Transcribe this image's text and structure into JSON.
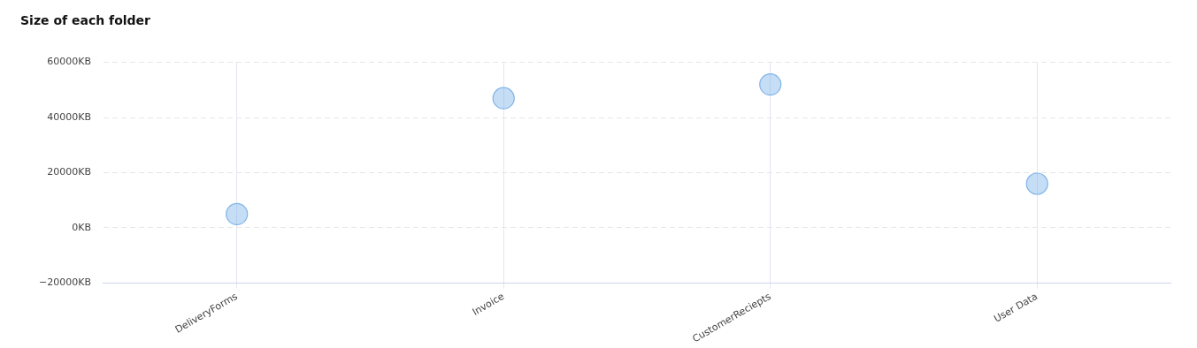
{
  "chart_data": {
    "type": "scatter",
    "title": "Size of each folder",
    "categories": [
      "DeliveryForms",
      "Invoice",
      "CustomerReciepts",
      "User Data"
    ],
    "series": [
      {
        "color": "#7fb3e8",
        "values": [
          5000,
          47000,
          52000,
          16000
        ]
      }
    ],
    "ylim": [
      -20000,
      60000
    ],
    "yticks": [
      {
        "value": -20000,
        "label": "−20000KB"
      },
      {
        "value": 0,
        "label": "0KB"
      },
      {
        "value": 20000,
        "label": "20000KB"
      },
      {
        "value": 40000,
        "label": "40000KB"
      },
      {
        "value": 60000,
        "label": "60000KB"
      }
    ],
    "grid": true,
    "marker": "circle"
  }
}
